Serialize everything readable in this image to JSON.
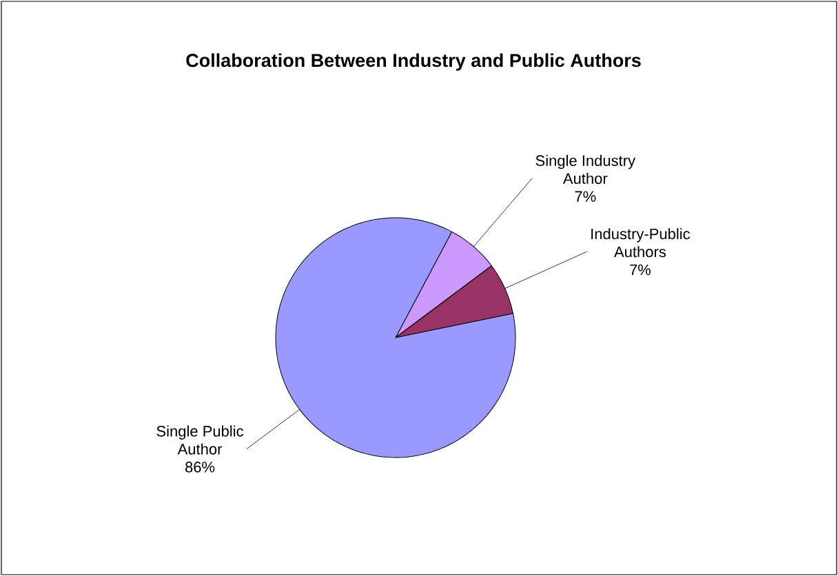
{
  "chart_data": {
    "type": "pie",
    "title": "Collaboration Between Industry and Public Authors",
    "categories": [
      "Single Industry Author",
      "Industry-Public Authors",
      "Single Public Author"
    ],
    "values": [
      7,
      7,
      86
    ],
    "value_labels": [
      "7%",
      "7%",
      "86%"
    ],
    "colors": [
      "#cc99ff",
      "#993366",
      "#9999ff"
    ]
  }
}
